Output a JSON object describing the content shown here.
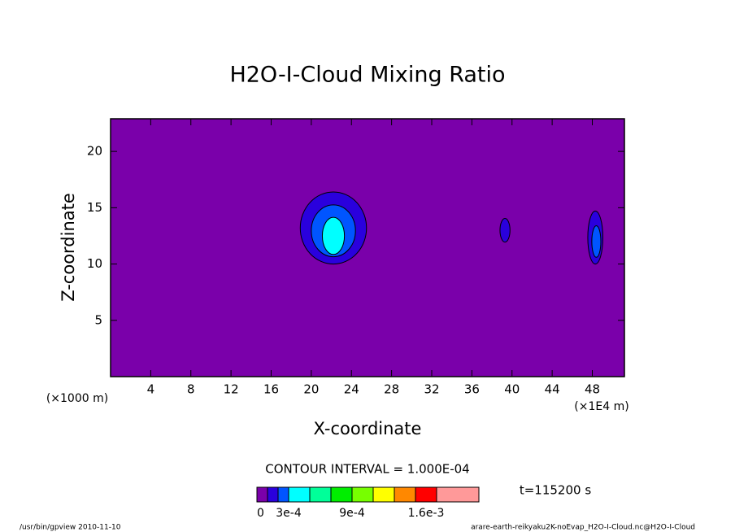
{
  "chart_data": {
    "type": "contour",
    "title": "H2O-I-Cloud Mixing Ratio",
    "x_label": "X-coordinate",
    "y_label": "Z-coordinate",
    "x_unit": "(×1E4 m)",
    "y_unit": "(×1000 m)",
    "xlim": [
      0,
      51.2
    ],
    "ylim": [
      0,
      22.9
    ],
    "xticks": [
      4,
      8,
      12,
      16,
      20,
      24,
      28,
      32,
      36,
      40,
      44,
      48
    ],
    "yticks": [
      5,
      10,
      15,
      20
    ],
    "contour_interval": "CONTOUR INTERVAL = 1.000E-04",
    "time": "t=115200 s",
    "colorbar": {
      "levels": [
        0,
        0.0001,
        0.0002,
        0.0003,
        0.0005,
        0.0007,
        0.0009,
        0.0011,
        0.0013,
        0.0015,
        0.0017,
        0.0021
      ],
      "colors": [
        "#7a00aa",
        "#2a00dd",
        "#0055ff",
        "#00ffff",
        "#00ff99",
        "#00ee00",
        "#77ff00",
        "#ffff00",
        "#ff8800",
        "#ff0000",
        "#ff9999"
      ],
      "ticks": [
        0,
        {
          "value": 0.0003,
          "label": "3e-4"
        },
        {
          "value": 0.0009,
          "label": "9e-4"
        },
        {
          "value": 0.0016,
          "label": "1.6e-3"
        }
      ]
    },
    "regions": [
      {
        "level": 1,
        "x": 22.2,
        "z": 13.2,
        "dx": 3.3,
        "dz": 3.2
      },
      {
        "level": 2,
        "x": 22.2,
        "z": 12.95,
        "dx": 2.2,
        "dz": 2.3
      },
      {
        "level": 3,
        "x": 22.2,
        "z": 12.5,
        "dx": 1.1,
        "dz": 1.65
      },
      {
        "level": 1,
        "x": 39.3,
        "z": 13,
        "dx": 0.5,
        "dz": 1.05
      },
      {
        "level": 1,
        "x": 48.3,
        "z": 12.35,
        "dx": 0.75,
        "dz": 2.35
      },
      {
        "level": 2,
        "x": 48.4,
        "z": 12.0,
        "dx": 0.45,
        "dz": 1.4
      }
    ],
    "footer_left": "/usr/bin/gpview  2010-11-10",
    "footer_right": "arare-earth-reikyaku2K-noEvap_H2O-I-Cloud.nc@H2O-I-Cloud"
  }
}
